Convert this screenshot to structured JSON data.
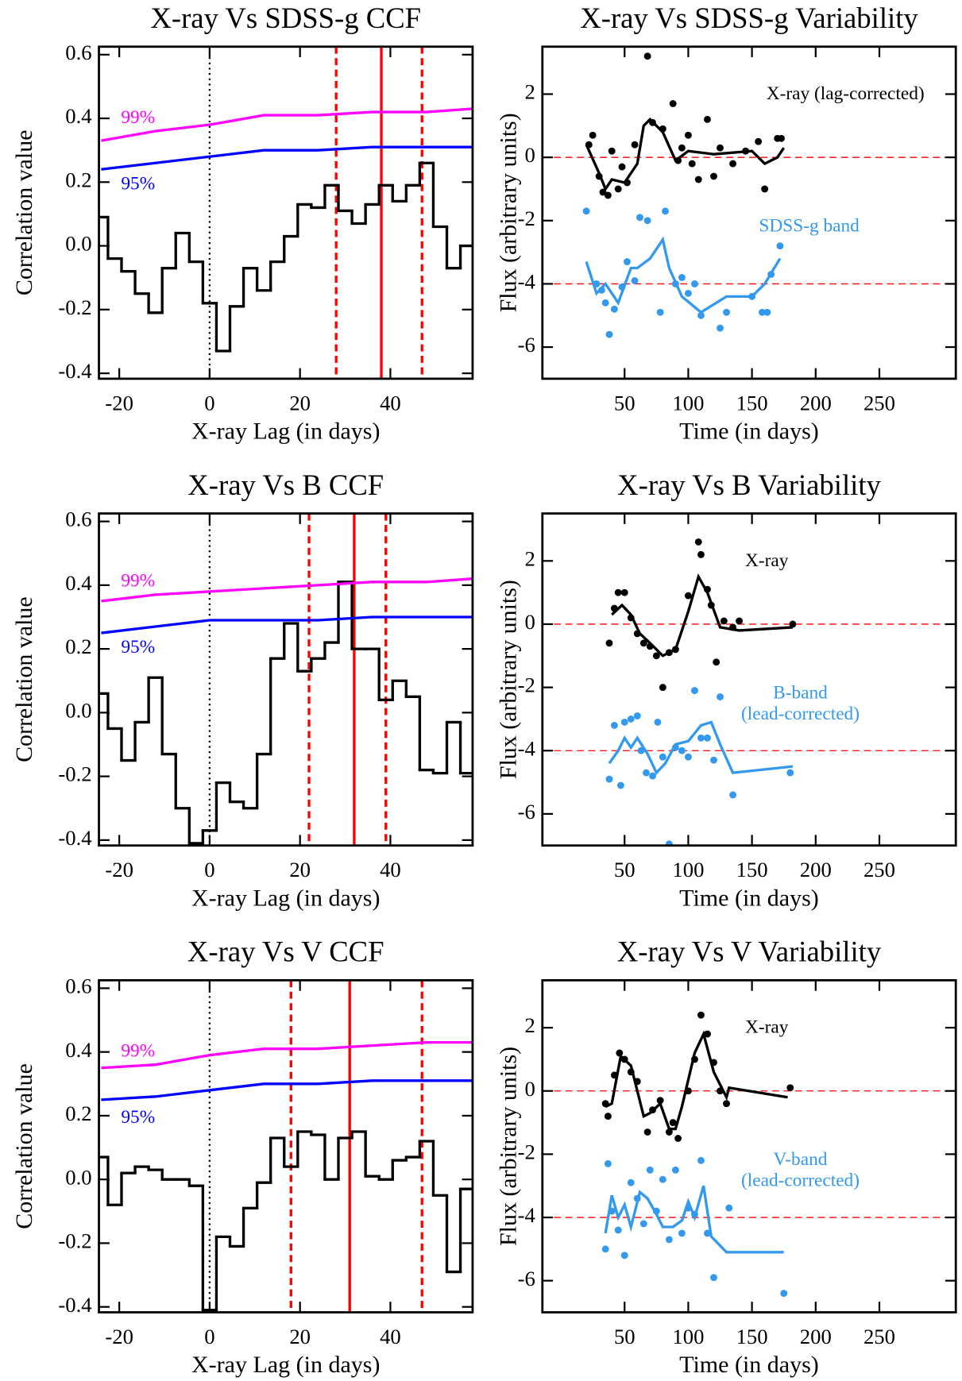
{
  "chart_data": [
    {
      "type": "step",
      "title": "X-ray Vs SDSS-g CCF",
      "xlabel": "X-ray Lag (in days)",
      "ylabel": "Correlation value",
      "xlim": [
        -24.5,
        58.2
      ],
      "ylim": [
        -0.417,
        0.625
      ],
      "xticks": [
        -20,
        0,
        20,
        40
      ],
      "yticks": [
        -0.4,
        -0.2,
        {
          "value": 0,
          "label": "0.0"
        },
        0.2,
        0.4,
        0.6
      ],
      "series": [
        {
          "color": "#000000",
          "drawstyle": "steps-mid",
          "x": [
            -24,
            -21,
            -18,
            -15,
            -12,
            -9,
            -6,
            -3,
            0,
            3,
            6,
            9,
            12,
            15,
            18,
            21,
            24,
            27,
            30,
            33,
            36,
            39,
            42,
            45,
            48,
            51,
            54,
            57
          ],
          "values": [
            0.09,
            -0.04,
            -0.08,
            -0.15,
            -0.21,
            -0.07,
            0.04,
            -0.05,
            -0.18,
            -0.33,
            -0.19,
            -0.07,
            -0.14,
            -0.05,
            0.03,
            0.13,
            0.12,
            0.19,
            0.11,
            0.07,
            0.13,
            0.19,
            0.14,
            0.19,
            0.26,
            0.06,
            -0.07,
            0.0
          ]
        },
        {
          "name": "99%",
          "color": "#ff00ff",
          "x": [
            -24,
            -12,
            0,
            12,
            24,
            36,
            48,
            58
          ],
          "values": [
            0.33,
            0.36,
            0.38,
            0.41,
            0.41,
            0.42,
            0.42,
            0.43
          ]
        },
        {
          "name": "95%",
          "color": "#0000ff",
          "x": [
            -24,
            -12,
            0,
            12,
            24,
            36,
            48,
            58
          ],
          "values": [
            0.24,
            0.26,
            0.28,
            0.3,
            0.3,
            0.31,
            0.31,
            0.31
          ]
        }
      ],
      "vlines": [
        {
          "value": 0,
          "style": "dotted",
          "color": "#000000"
        },
        {
          "value": 28,
          "style": "dashed",
          "color": "#ff0000"
        },
        {
          "value": 38,
          "style": "solid",
          "color": "#ff0000"
        },
        {
          "value": 47,
          "style": "dashed",
          "color": "#ff0000"
        }
      ]
    },
    {
      "type": "scatter",
      "title": "X-ray Vs SDSS-g Variability",
      "xlabel": "Time (in days)",
      "ylabel": "Flux (arbitrary units)",
      "xlim": [
        -14.5,
        310
      ],
      "ylim": [
        -7,
        3.5
      ],
      "xticks": [
        50,
        100,
        150,
        200,
        250
      ],
      "yticks": [
        -6,
        -4,
        -2,
        0,
        2
      ],
      "series": [
        {
          "name": "X-ray (lag-corrected)",
          "color": "#000000",
          "x": [
            22,
            25,
            30,
            33,
            37,
            40,
            45,
            48,
            52,
            58,
            68,
            72,
            80,
            88,
            92,
            95,
            100,
            103,
            108,
            115,
            120,
            125,
            135,
            145,
            155,
            160,
            170,
            173
          ],
          "values": [
            0.4,
            0.7,
            -0.6,
            -1.1,
            -1.2,
            0.2,
            -1.0,
            -0.3,
            -0.8,
            0.4,
            3.2,
            1.1,
            0.9,
            1.7,
            -0.1,
            0.3,
            0.7,
            -0.2,
            -0.7,
            1.2,
            -0.6,
            0.3,
            -0.2,
            0.2,
            0.5,
            -1.0,
            0.6,
            0.6
          ],
          "line_x": [
            20,
            30,
            35,
            40,
            50,
            60,
            65,
            70,
            80,
            90,
            100,
            120,
            150,
            160,
            170,
            175
          ],
          "line_values": [
            0.4,
            -0.5,
            -1.0,
            -0.7,
            -0.8,
            -0.2,
            1.0,
            1.2,
            0.8,
            -0.1,
            0.2,
            0.1,
            0.2,
            -0.2,
            0.0,
            0.3
          ]
        },
        {
          "name": "SDSS-g band",
          "color": "#3399ee",
          "x": [
            20,
            28,
            32,
            35,
            38,
            42,
            48,
            52,
            58,
            62,
            68,
            78,
            82,
            90,
            95,
            100,
            105,
            110,
            125,
            130,
            150,
            158,
            162,
            165,
            172
          ],
          "values": [
            -1.7,
            -4.0,
            -4.2,
            -4.6,
            -5.6,
            -4.8,
            -4.1,
            -3.3,
            -3.9,
            -1.9,
            -2.0,
            -4.9,
            -1.7,
            -4.0,
            -3.8,
            -4.3,
            -4.0,
            -5.0,
            -5.4,
            -4.9,
            -4.4,
            -4.9,
            -4.9,
            -3.7,
            -2.8
          ],
          "line_x": [
            20,
            28,
            35,
            45,
            55,
            60,
            70,
            80,
            85,
            95,
            110,
            130,
            150,
            160,
            172
          ],
          "line_values": [
            -3.3,
            -4.3,
            -4.0,
            -4.6,
            -3.5,
            -3.5,
            -3.2,
            -2.6,
            -3.5,
            -4.4,
            -4.9,
            -4.4,
            -4.4,
            -4.0,
            -3.2
          ]
        }
      ],
      "hlines": [
        {
          "value": 0,
          "style": "dashed",
          "color": "#ff0000"
        },
        {
          "value": -4,
          "style": "dashed",
          "color": "#ff0000"
        }
      ]
    },
    {
      "type": "step",
      "title": "X-ray Vs B CCF",
      "xlabel": "X-ray Lag (in days)",
      "ylabel": "Correlation value",
      "xlim": [
        -24.5,
        58.2
      ],
      "ylim": [
        -0.417,
        0.625
      ],
      "xticks": [
        -20,
        0,
        20,
        40
      ],
      "yticks": [
        -0.4,
        -0.2,
        {
          "value": 0,
          "label": "0.0"
        },
        0.2,
        0.4,
        0.6
      ],
      "series": [
        {
          "color": "#000000",
          "drawstyle": "steps-mid",
          "x": [
            -24,
            -21,
            -18,
            -15,
            -12,
            -9,
            -6,
            -3,
            0,
            3,
            6,
            9,
            12,
            15,
            18,
            21,
            24,
            27,
            30,
            33,
            36,
            39,
            42,
            45,
            48,
            51,
            54,
            57
          ],
          "values": [
            0.06,
            -0.05,
            -0.15,
            -0.03,
            0.11,
            -0.13,
            -0.3,
            -0.41,
            -0.37,
            -0.22,
            -0.28,
            -0.3,
            -0.13,
            0.17,
            0.28,
            0.13,
            0.17,
            0.22,
            0.41,
            0.2,
            0.2,
            0.04,
            0.1,
            0.05,
            -0.18,
            -0.19,
            -0.03,
            -0.19
          ]
        },
        {
          "name": "99%",
          "color": "#ff00ff",
          "x": [
            -24,
            -12,
            0,
            12,
            24,
            36,
            48,
            58
          ],
          "values": [
            0.35,
            0.37,
            0.38,
            0.39,
            0.4,
            0.41,
            0.41,
            0.42
          ]
        },
        {
          "name": "95%",
          "color": "#0000ff",
          "x": [
            -24,
            -12,
            0,
            12,
            24,
            36,
            48,
            58
          ],
          "values": [
            0.25,
            0.27,
            0.29,
            0.29,
            0.29,
            0.3,
            0.3,
            0.3
          ]
        }
      ],
      "vlines": [
        {
          "value": 0,
          "style": "dotted",
          "color": "#000000"
        },
        {
          "value": 22,
          "style": "dashed",
          "color": "#ff0000"
        },
        {
          "value": 32,
          "style": "solid",
          "color": "#ff0000"
        },
        {
          "value": 39,
          "style": "dashed",
          "color": "#ff0000"
        }
      ]
    },
    {
      "type": "scatter",
      "title": "X-ray Vs B Variability",
      "xlabel": "Time (in days)",
      "ylabel": "Flux (arbitrary units)",
      "xlim": [
        -14.5,
        310
      ],
      "ylim": [
        -7,
        3.5
      ],
      "xticks": [
        50,
        100,
        150,
        200,
        250
      ],
      "yticks": [
        -6,
        -4,
        -2,
        0,
        2
      ],
      "series": [
        {
          "name": "X-ray",
          "color": "#000000",
          "x": [
            38,
            42,
            45,
            50,
            55,
            60,
            65,
            70,
            75,
            80,
            85,
            90,
            100,
            108,
            110,
            115,
            118,
            122,
            128,
            135,
            140,
            182
          ],
          "values": [
            -0.6,
            0.5,
            1.0,
            1.0,
            0.2,
            -0.3,
            -0.6,
            -0.7,
            -1.0,
            -2.0,
            -0.9,
            -0.8,
            0.9,
            2.6,
            2.2,
            1.1,
            0.6,
            -1.2,
            0.1,
            -0.1,
            0.1,
            0.0
          ],
          "line_x": [
            40,
            48,
            55,
            62,
            70,
            80,
            90,
            100,
            108,
            115,
            125,
            140,
            182
          ],
          "line_values": [
            0.3,
            0.6,
            0.3,
            -0.3,
            -0.6,
            -1.0,
            -0.8,
            0.4,
            1.5,
            1.0,
            -0.1,
            -0.2,
            -0.1
          ]
        },
        {
          "name": "B-band",
          "note": "(lead-corrected)",
          "color": "#3399ee",
          "x": [
            38,
            42,
            47,
            50,
            55,
            60,
            63,
            67,
            72,
            76,
            80,
            85,
            90,
            95,
            100,
            105,
            110,
            115,
            120,
            125,
            135,
            180
          ],
          "values": [
            -4.9,
            -3.2,
            -5.1,
            -3.1,
            -3.0,
            -2.9,
            -4.0,
            -4.7,
            -4.8,
            -3.1,
            -4.2,
            -6.95,
            -3.9,
            -4.0,
            -4.2,
            -2.1,
            -3.6,
            -3.6,
            -4.3,
            -2.3,
            -5.4,
            -4.7
          ],
          "line_x": [
            38,
            45,
            50,
            55,
            60,
            68,
            75,
            82,
            90,
            100,
            110,
            118,
            125,
            135,
            182
          ],
          "line_values": [
            -4.4,
            -4.0,
            -3.6,
            -3.9,
            -3.6,
            -4.1,
            -4.7,
            -4.4,
            -3.8,
            -3.7,
            -3.2,
            -3.1,
            -3.8,
            -4.7,
            -4.5
          ]
        }
      ],
      "hlines": [
        {
          "value": 0,
          "style": "dashed",
          "color": "#ff0000"
        },
        {
          "value": -4,
          "style": "dashed",
          "color": "#ff0000"
        }
      ]
    },
    {
      "type": "step",
      "title": "X-ray Vs V CCF",
      "xlabel": "X-ray Lag (in days)",
      "ylabel": "Correlation value",
      "xlim": [
        -24.5,
        58.2
      ],
      "ylim": [
        -0.417,
        0.625
      ],
      "xticks": [
        -20,
        0,
        20,
        40
      ],
      "yticks": [
        -0.4,
        -0.2,
        {
          "value": 0,
          "label": "0.0"
        },
        0.2,
        0.4,
        0.6
      ],
      "series": [
        {
          "color": "#000000",
          "drawstyle": "steps-mid",
          "x": [
            -24,
            -21,
            -18,
            -15,
            -12,
            -9,
            -6,
            -3,
            0,
            3,
            6,
            9,
            12,
            15,
            18,
            21,
            24,
            27,
            30,
            33,
            36,
            39,
            42,
            45,
            48,
            51,
            54,
            57
          ],
          "values": [
            0.07,
            -0.08,
            0.02,
            0.04,
            0.03,
            0.0,
            0.0,
            -0.02,
            -0.41,
            -0.18,
            -0.21,
            -0.09,
            -0.01,
            0.13,
            0.04,
            0.15,
            0.14,
            0.0,
            0.13,
            0.15,
            0.01,
            0.0,
            0.06,
            0.07,
            0.12,
            -0.05,
            -0.29,
            -0.03
          ]
        },
        {
          "name": "99%",
          "color": "#ff00ff",
          "x": [
            -24,
            -12,
            0,
            12,
            24,
            36,
            48,
            58
          ],
          "values": [
            0.35,
            0.36,
            0.39,
            0.41,
            0.41,
            0.42,
            0.43,
            0.43
          ]
        },
        {
          "name": "95%",
          "color": "#0000ff",
          "x": [
            -24,
            -12,
            0,
            12,
            24,
            36,
            48,
            58
          ],
          "values": [
            0.25,
            0.26,
            0.28,
            0.3,
            0.3,
            0.31,
            0.31,
            0.31
          ]
        }
      ],
      "vlines": [
        {
          "value": 0,
          "style": "dotted",
          "color": "#000000"
        },
        {
          "value": 18,
          "style": "dashed",
          "color": "#ff0000"
        },
        {
          "value": 31,
          "style": "solid",
          "color": "#ff0000"
        },
        {
          "value": 47,
          "style": "dashed",
          "color": "#ff0000"
        }
      ]
    },
    {
      "type": "scatter",
      "title": "X-ray Vs V Variability",
      "xlabel": "Time (in days)",
      "ylabel": "Flux (arbitrary units)",
      "xlim": [
        -14.5,
        310
      ],
      "ylim": [
        -7,
        3.5
      ],
      "xticks": [
        50,
        100,
        150,
        200,
        250
      ],
      "yticks": [
        -6,
        -4,
        -2,
        0,
        2
      ],
      "series": [
        {
          "name": "X-ray",
          "color": "#000000",
          "x": [
            35,
            37,
            42,
            46,
            50,
            55,
            60,
            68,
            72,
            78,
            85,
            88,
            92,
            100,
            105,
            110,
            115,
            120,
            125,
            130,
            180
          ],
          "values": [
            -0.4,
            -0.8,
            0.5,
            1.2,
            1.0,
            0.6,
            0.3,
            -1.3,
            -0.6,
            -0.3,
            -1.3,
            -1.0,
            -1.5,
            0.0,
            1.0,
            2.4,
            1.8,
            0.9,
            0.0,
            -0.4,
            0.1
          ],
          "line_x": [
            35,
            40,
            47,
            55,
            65,
            70,
            78,
            85,
            90,
            95,
            105,
            112,
            120,
            130,
            132,
            178
          ],
          "line_values": [
            -0.5,
            -0.4,
            1.1,
            0.8,
            -0.8,
            -0.7,
            -0.4,
            -1.2,
            -1.2,
            -0.5,
            1.2,
            1.8,
            0.6,
            -0.2,
            0.1,
            -0.2
          ]
        },
        {
          "name": "V-band",
          "note": "(lead-corrected)",
          "color": "#3399ee",
          "x": [
            35,
            37,
            40,
            45,
            50,
            55,
            60,
            65,
            70,
            75,
            80,
            85,
            90,
            95,
            100,
            105,
            110,
            115,
            120,
            132,
            175
          ],
          "values": [
            -5.0,
            -2.3,
            -3.8,
            -4.4,
            -5.2,
            -2.9,
            -3.4,
            -4.2,
            -2.5,
            -3.8,
            -2.8,
            -4.7,
            -2.5,
            -4.5,
            -3.7,
            -3.9,
            -2.2,
            -4.5,
            -5.9,
            -3.7,
            -6.4
          ],
          "line_x": [
            35,
            40,
            45,
            50,
            55,
            62,
            68,
            75,
            80,
            88,
            95,
            100,
            105,
            112,
            118,
            130,
            175
          ],
          "line_values": [
            -4.5,
            -3.3,
            -4.0,
            -3.6,
            -4.3,
            -3.2,
            -3.4,
            -3.9,
            -4.3,
            -4.3,
            -4.1,
            -3.5,
            -4.0,
            -3.0,
            -4.6,
            -5.1,
            -5.1
          ]
        }
      ],
      "hlines": [
        {
          "value": 0,
          "style": "dashed",
          "color": "#ff0000"
        },
        {
          "value": -4,
          "style": "dashed",
          "color": "#ff0000"
        }
      ]
    }
  ]
}
